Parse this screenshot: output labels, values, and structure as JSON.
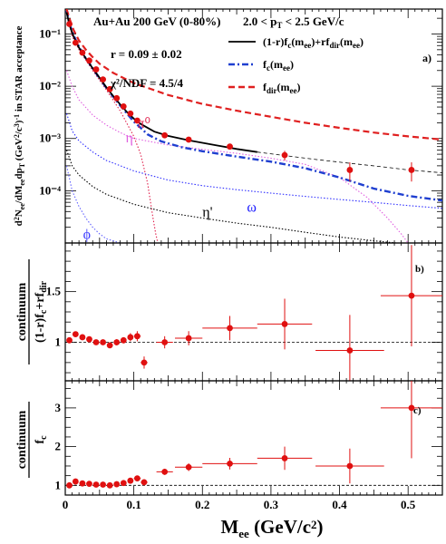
{
  "chart_data": [
    {
      "type": "scatter",
      "title": "Au+Au 200 GeV (0-80%)",
      "subtitle": "2.0 < pT < 2.5 GeV/c",
      "ylabel": "d²Nee/dMeedpT (GeV²/c³)⁻¹ in STAR acceptance",
      "panel_label": "a)",
      "fit_text": [
        "r = 0.09  ± 0.02",
        "χ²/NDF = 4.5/4"
      ],
      "yscale": "log",
      "ylim": [
        1e-05,
        0.3
      ],
      "xlim": [
        0,
        0.55
      ],
      "yticks": [
        {
          "v": 0.0001,
          "label": "10⁻⁴"
        },
        {
          "v": 0.001,
          "label": "10⁻³"
        },
        {
          "v": 0.01,
          "label": "10⁻²"
        },
        {
          "v": 0.1,
          "label": "10⁻¹"
        }
      ],
      "cocktail_labels": [
        {
          "text": "π⁰",
          "x": 0.105,
          "y": 0.0016,
          "color": "#e0204c"
        },
        {
          "text": "η",
          "x": 0.088,
          "y": 0.00085,
          "color": "#e060e0"
        },
        {
          "text": "ω",
          "x": 0.265,
          "y": 4e-05,
          "color": "#2020ff"
        },
        {
          "text": "η'",
          "x": 0.2,
          "y": 3.2e-05,
          "color": "#000000"
        },
        {
          "text": "ϕ",
          "x": 0.026,
          "y": 1.2e-05,
          "color": "#4040ff"
        }
      ],
      "legend": [
        {
          "label": "(1-r)fc(mee)+rfdir(mee)",
          "color": "#000000",
          "style": "solid"
        },
        {
          "label": "fc(mee)",
          "color": "#1f3fd0",
          "style": "dashdot"
        },
        {
          "label": "fdir(mee)",
          "color": "#e02020",
          "style": "dashed"
        }
      ],
      "data": {
        "x": [
          0.006,
          0.015,
          0.025,
          0.035,
          0.045,
          0.055,
          0.065,
          0.075,
          0.085,
          0.095,
          0.105,
          0.145,
          0.18,
          0.24,
          0.32,
          0.415,
          0.505
        ],
        "y": [
          0.155,
          0.068,
          0.044,
          0.031,
          0.021,
          0.0135,
          0.0088,
          0.0059,
          0.0041,
          0.003,
          0.0022,
          0.00115,
          0.00095,
          0.0007,
          0.00048,
          0.00025,
          0.00025
        ],
        "yerr": [
          0.01,
          0.003,
          0.002,
          0.0015,
          0.001,
          0.0007,
          0.0005,
          0.0003,
          0.0002,
          0.00015,
          0.00012,
          6e-05,
          6e-05,
          6e-05,
          0.0001,
          0.0001,
          0.0001
        ],
        "xerr": [
          0,
          0,
          0,
          0,
          0,
          0,
          0,
          0,
          0,
          0,
          0,
          0,
          0,
          0,
          0,
          0,
          0
        ]
      },
      "series": [
        {
          "name": "(1-r)fc(mee)+rfdir(mee)",
          "color": "#000000",
          "style": "solid",
          "x": [
            0.002,
            0.006,
            0.012,
            0.02,
            0.03,
            0.04,
            0.05,
            0.06,
            0.07,
            0.08,
            0.09,
            0.1,
            0.11,
            0.13,
            0.15,
            0.18,
            0.22,
            0.25,
            0.28
          ],
          "y": [
            0.26,
            0.15,
            0.09,
            0.055,
            0.034,
            0.022,
            0.0145,
            0.0095,
            0.0065,
            0.0045,
            0.0032,
            0.0024,
            0.0019,
            0.00135,
            0.00112,
            0.00092,
            0.00074,
            0.00063,
            0.00055
          ]
        },
        {
          "name": "(1-r)fc(mee)+rfdir(mee) extrapolation",
          "color": "#000000",
          "style": "thin-dashed",
          "x": [
            0.28,
            0.32,
            0.37,
            0.42,
            0.47,
            0.5,
            0.55
          ],
          "y": [
            0.00055,
            0.00047,
            0.00039,
            0.00033,
            0.00028,
            0.00025,
            0.00022
          ]
        },
        {
          "name": "fc(mee)",
          "color": "#1f3fd0",
          "style": "dashdot",
          "x": [
            0.002,
            0.006,
            0.012,
            0.02,
            0.03,
            0.04,
            0.05,
            0.06,
            0.07,
            0.08,
            0.09,
            0.1,
            0.11,
            0.12,
            0.14,
            0.17,
            0.2,
            0.25,
            0.3,
            0.35,
            0.4,
            0.45,
            0.5,
            0.55
          ],
          "y": [
            0.28,
            0.16,
            0.095,
            0.057,
            0.034,
            0.022,
            0.0143,
            0.0093,
            0.0063,
            0.0043,
            0.003,
            0.0021,
            0.0016,
            0.0012,
            0.00088,
            0.00068,
            0.00057,
            0.00045,
            0.00036,
            0.00027,
            0.00018,
            0.00011,
            8e-05,
            6.5e-05
          ]
        },
        {
          "name": "fdir(mee)",
          "color": "#e02020",
          "style": "dashed",
          "x": [
            0.002,
            0.006,
            0.012,
            0.02,
            0.03,
            0.04,
            0.05,
            0.07,
            0.1,
            0.15,
            0.2,
            0.25,
            0.3,
            0.35,
            0.4,
            0.45,
            0.5,
            0.55
          ],
          "y": [
            0.3,
            0.2,
            0.12,
            0.075,
            0.05,
            0.036,
            0.027,
            0.018,
            0.0115,
            0.0068,
            0.0046,
            0.0034,
            0.0026,
            0.002,
            0.0016,
            0.0013,
            0.0011,
            0.00095
          ]
        },
        {
          "name": "π⁰",
          "color": "#e0204c",
          "style": "dotted",
          "x": [
            0.002,
            0.01,
            0.02,
            0.04,
            0.06,
            0.08,
            0.1,
            0.11,
            0.12,
            0.128,
            0.132,
            0.135
          ],
          "y": [
            0.25,
            0.09,
            0.05,
            0.02,
            0.0085,
            0.0034,
            0.0011,
            0.0005,
            0.00014,
            3e-05,
            1.5e-05,
            1e-05
          ]
        },
        {
          "name": "η",
          "color": "#e060e0",
          "style": "dotted",
          "x": [
            0.002,
            0.01,
            0.02,
            0.04,
            0.06,
            0.08,
            0.1,
            0.15,
            0.2,
            0.25,
            0.3,
            0.35,
            0.4,
            0.44,
            0.47,
            0.49,
            0.5
          ],
          "y": [
            0.02,
            0.01,
            0.0055,
            0.0028,
            0.0018,
            0.0013,
            0.001,
            0.00075,
            0.00062,
            0.00052,
            0.00042,
            0.00032,
            0.00018,
            7.5e-05,
            3e-05,
            1.5e-05,
            1e-05
          ]
        },
        {
          "name": "ω",
          "color": "#3030ff",
          "style": "dotted",
          "x": [
            0.002,
            0.01,
            0.02,
            0.04,
            0.06,
            0.1,
            0.15,
            0.2,
            0.25,
            0.3,
            0.35,
            0.4,
            0.45,
            0.5,
            0.55
          ],
          "y": [
            0.003,
            0.0014,
            0.0009,
            0.00055,
            0.00038,
            0.00024,
            0.00016,
            0.000125,
            0.000105,
            9e-05,
            7.8e-05,
            6.8e-05,
            6e-05,
            5.2e-05,
            4.6e-05
          ]
        },
        {
          "name": "η'",
          "color": "#000000",
          "style": "dotted",
          "x": [
            0.002,
            0.01,
            0.02,
            0.04,
            0.06,
            0.1,
            0.15,
            0.2,
            0.25,
            0.3,
            0.35,
            0.4,
            0.45,
            0.5,
            0.55
          ],
          "y": [
            0.0006,
            0.0003,
            0.0002,
            0.00012,
            8.5e-05,
            5.5e-05,
            3.8e-05,
            3e-05,
            2.4e-05,
            2e-05,
            1.6e-05,
            1.3e-05,
            1.1e-05,
            9.5e-06,
            8e-06
          ]
        },
        {
          "name": "ϕ",
          "color": "#6060ff",
          "style": "dotted",
          "x": [
            0.002,
            0.01,
            0.02,
            0.03,
            0.04,
            0.05,
            0.06,
            0.08
          ],
          "y": [
            0.0003,
            0.0001,
            5e-05,
            3e-05,
            2e-05,
            1.5e-05,
            1.2e-05,
            1e-05
          ]
        }
      ]
    },
    {
      "type": "scatter",
      "panel_label": "b)",
      "ylabel_num": "continuum",
      "ylabel_den": "(1-r)fc+rfdir",
      "xlim": [
        0,
        0.55
      ],
      "ylim": [
        0.62,
        1.98
      ],
      "yticks": [
        {
          "v": 1,
          "label": "1"
        },
        {
          "v": 1.5,
          "label": "1.5"
        }
      ],
      "reference_line": 1,
      "data": {
        "x": [
          0.006,
          0.015,
          0.025,
          0.035,
          0.045,
          0.055,
          0.065,
          0.075,
          0.085,
          0.095,
          0.105,
          0.115,
          0.145,
          0.18,
          0.24,
          0.32,
          0.415,
          0.505
        ],
        "y": [
          1.02,
          1.08,
          1.05,
          1.03,
          1.0,
          1.0,
          0.97,
          1.0,
          1.02,
          1.05,
          1.06,
          0.8,
          1.0,
          1.04,
          1.14,
          1.18,
          0.92,
          1.46
        ],
        "yerr": [
          0.02,
          0.02,
          0.02,
          0.02,
          0.02,
          0.02,
          0.02,
          0.03,
          0.03,
          0.04,
          0.05,
          0.06,
          0.06,
          0.07,
          0.12,
          0.25,
          0.35,
          0.5
        ],
        "xerr": [
          0,
          0,
          0,
          0,
          0,
          0,
          0,
          0,
          0,
          0,
          0.005,
          0.005,
          0.012,
          0.02,
          0.04,
          0.04,
          0.05,
          0.045
        ]
      }
    },
    {
      "type": "scatter",
      "panel_label": "c)",
      "ylabel_num": "continuum",
      "ylabel_den": "fc",
      "xlabel": "Mee (GeV/c²)",
      "xlim": [
        0,
        0.55
      ],
      "ylim": [
        0.75,
        3.7
      ],
      "yticks": [
        {
          "v": 1,
          "label": "1"
        },
        {
          "v": 2,
          "label": "2"
        },
        {
          "v": 3,
          "label": "3"
        }
      ],
      "xticks": [
        {
          "v": 0,
          "label": "0"
        },
        {
          "v": 0.1,
          "label": "0.1"
        },
        {
          "v": 0.2,
          "label": "0.2"
        },
        {
          "v": 0.3,
          "label": "0.3"
        },
        {
          "v": 0.4,
          "label": "0.4"
        },
        {
          "v": 0.5,
          "label": "0.5"
        }
      ],
      "reference_line": 1,
      "data": {
        "x": [
          0.006,
          0.015,
          0.025,
          0.035,
          0.045,
          0.055,
          0.065,
          0.075,
          0.085,
          0.095,
          0.105,
          0.115,
          0.145,
          0.18,
          0.24,
          0.32,
          0.415,
          0.505
        ],
        "y": [
          1.0,
          1.1,
          1.05,
          1.04,
          1.02,
          1.02,
          1.0,
          1.03,
          1.06,
          1.12,
          1.18,
          1.08,
          1.35,
          1.47,
          1.56,
          1.7,
          1.5,
          3.0
        ],
        "yerr": [
          0.02,
          0.02,
          0.02,
          0.02,
          0.02,
          0.02,
          0.02,
          0.03,
          0.03,
          0.04,
          0.06,
          0.08,
          0.08,
          0.1,
          0.15,
          0.3,
          0.45,
          1.3
        ],
        "xerr": [
          0,
          0,
          0,
          0,
          0,
          0,
          0,
          0,
          0,
          0,
          0.005,
          0.005,
          0.012,
          0.02,
          0.04,
          0.04,
          0.05,
          0.045
        ]
      }
    }
  ]
}
